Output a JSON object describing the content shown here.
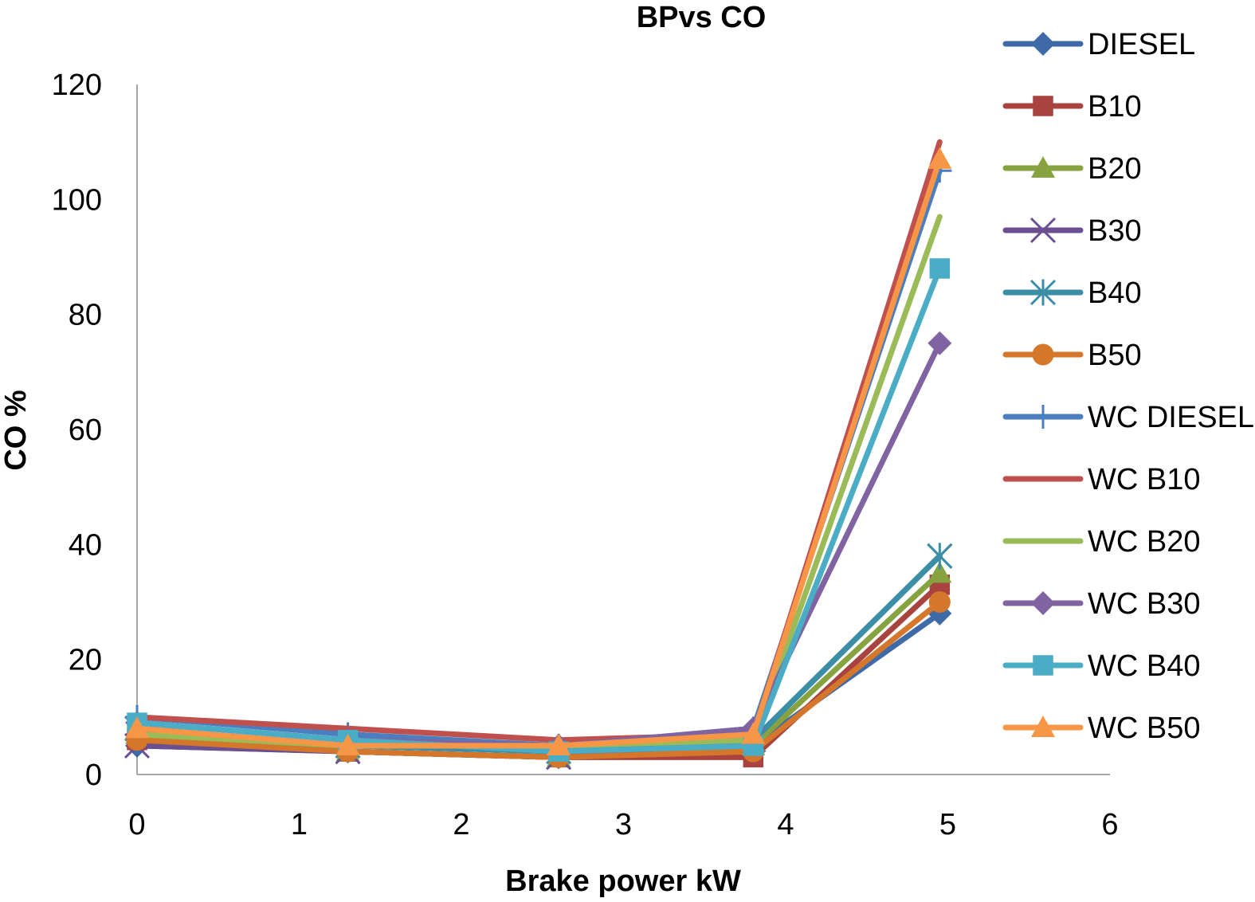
{
  "chart_data": {
    "type": "line",
    "title": "BPvs CO",
    "xlabel": "Brake power kW",
    "ylabel": "CO %",
    "xlim": [
      0,
      6
    ],
    "ylim": [
      0,
      120
    ],
    "xticks": [
      "0",
      "1",
      "2",
      "3",
      "4",
      "5",
      "6"
    ],
    "yticks": [
      "0",
      "20",
      "40",
      "60",
      "80",
      "100",
      "120"
    ],
    "grid": false,
    "legend_position": "right",
    "x": [
      0,
      1.3,
      2.6,
      3.8,
      4.95
    ],
    "series": [
      {
        "name": "DIESEL",
        "color": "#3f6aa8",
        "marker": "diamond",
        "values": [
          5,
          4,
          3,
          5,
          28
        ]
      },
      {
        "name": "B10",
        "color": "#a84340",
        "marker": "square",
        "values": [
          6,
          4,
          3,
          3,
          33
        ]
      },
      {
        "name": "B20",
        "color": "#86a33f",
        "marker": "triangle",
        "values": [
          7,
          4,
          3,
          5,
          35
        ]
      },
      {
        "name": "B30",
        "color": "#6b4f91",
        "marker": "x",
        "values": [
          5,
          4,
          3,
          6,
          38
        ]
      },
      {
        "name": "B40",
        "color": "#3a8fa6",
        "marker": "star",
        "values": [
          8,
          5,
          4,
          6,
          38
        ]
      },
      {
        "name": "B50",
        "color": "#d4772b",
        "marker": "circle",
        "values": [
          6,
          4,
          3,
          4,
          30
        ]
      },
      {
        "name": "WC DIESEL",
        "color": "#4a7ebf",
        "marker": "plus",
        "values": [
          10,
          7,
          5,
          8,
          105
        ]
      },
      {
        "name": "WC B10",
        "color": "#c0504d",
        "marker": "none",
        "values": [
          10,
          8,
          6,
          7,
          110
        ]
      },
      {
        "name": "WC B20",
        "color": "#9bbb59",
        "marker": "none",
        "values": [
          7,
          5,
          5,
          6,
          97
        ]
      },
      {
        "name": "WC B30",
        "color": "#8064a2",
        "marker": "diamond",
        "values": [
          9,
          6,
          5,
          8,
          75
        ]
      },
      {
        "name": "WC B40",
        "color": "#4bacc6",
        "marker": "square",
        "values": [
          9,
          6,
          4,
          5,
          88
        ]
      },
      {
        "name": "WC B50",
        "color": "#f79646",
        "marker": "triangle",
        "values": [
          8,
          5,
          5,
          7,
          107
        ]
      }
    ]
  }
}
